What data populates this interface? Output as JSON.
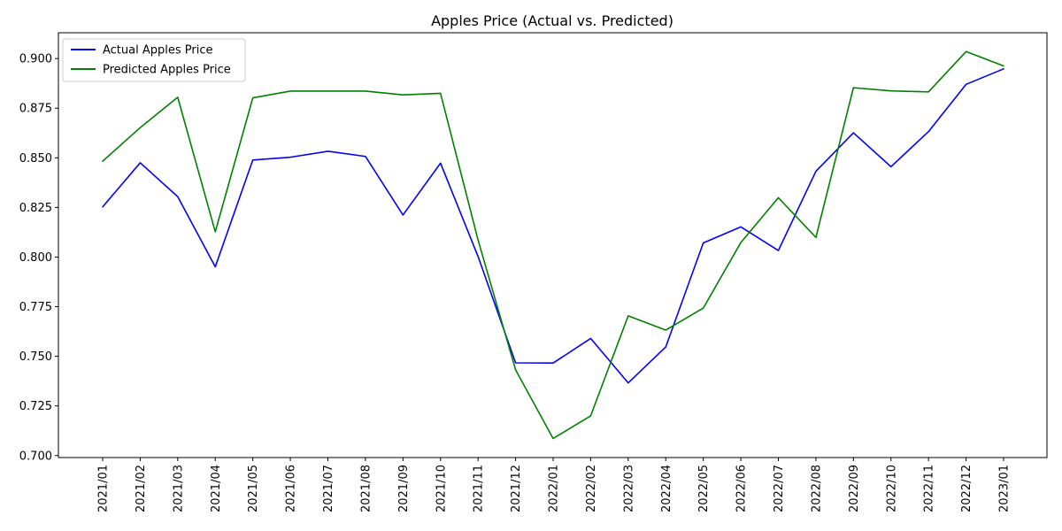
{
  "chart_data": {
    "type": "line",
    "title": "Apples Price (Actual vs. Predicted)",
    "xlabel": "",
    "ylabel": "",
    "categories": [
      "2021/01",
      "2021/02",
      "2021/03",
      "2021/04",
      "2021/05",
      "2021/06",
      "2021/07",
      "2021/08",
      "2021/09",
      "2021/10",
      "2021/11",
      "2021/12",
      "2022/01",
      "2022/02",
      "2022/03",
      "2022/04",
      "2022/05",
      "2022/06",
      "2022/07",
      "2022/08",
      "2022/09",
      "2022/10",
      "2022/11",
      "2022/12",
      "2023/01"
    ],
    "ylim": [
      0.699,
      0.913
    ],
    "yticks": [
      "0.700",
      "0.725",
      "0.750",
      "0.775",
      "0.800",
      "0.825",
      "0.850",
      "0.875",
      "0.900"
    ],
    "grid": false,
    "legend_position": "top-left",
    "series": [
      {
        "name": "Actual Apples Price",
        "color": "#0000ff",
        "values": [
          0.8253,
          0.8475,
          0.8304,
          0.7951,
          0.8489,
          0.8503,
          0.8533,
          0.8507,
          0.8212,
          0.8473,
          0.8003,
          0.7467,
          0.7466,
          0.759,
          0.7366,
          0.7547,
          0.8071,
          0.8152,
          0.8033,
          0.8432,
          0.8626,
          0.8455,
          0.8632,
          0.887,
          0.8948
        ]
      },
      {
        "name": "Predicted Apples Price",
        "color": "#008000",
        "values": [
          0.8483,
          0.8652,
          0.8805,
          0.8127,
          0.8802,
          0.8836,
          0.8836,
          0.8836,
          0.8817,
          0.8825,
          0.8086,
          0.7432,
          0.7086,
          0.72,
          0.7704,
          0.7632,
          0.7743,
          0.8073,
          0.8299,
          0.8099,
          0.8853,
          0.8837,
          0.8832,
          0.9035,
          0.8963
        ]
      }
    ]
  }
}
